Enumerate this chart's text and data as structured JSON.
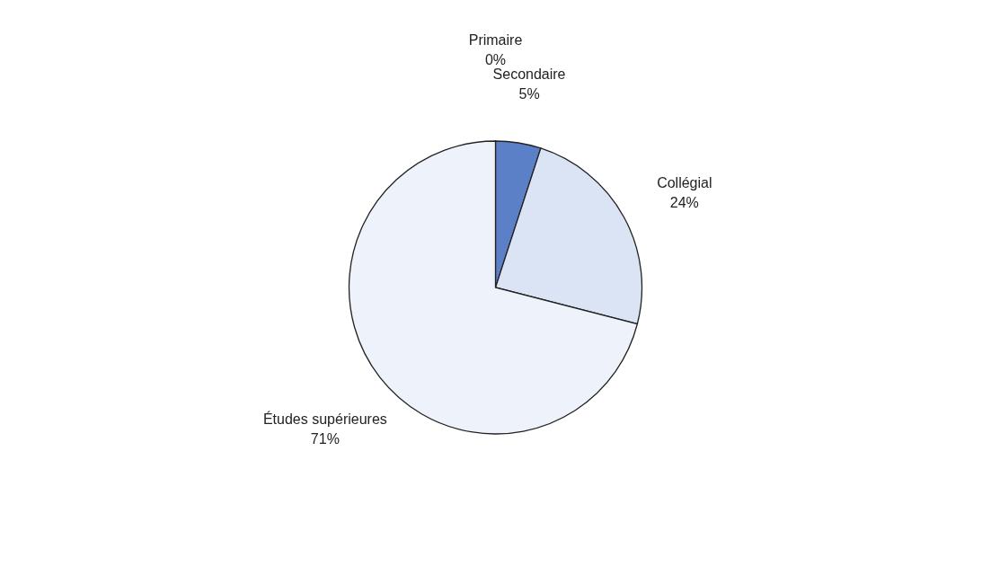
{
  "chart_data": {
    "type": "pie",
    "categories": [
      "Primaire",
      "Secondaire",
      "Collégial",
      "Études supérieures"
    ],
    "values": [
      0,
      5,
      24,
      71
    ],
    "value_labels": [
      "0%",
      "5%",
      "24%",
      "71%"
    ],
    "colors": [
      "#2f4f9f",
      "#5b80c8",
      "#dbe4f4",
      "#eef2fa"
    ]
  }
}
